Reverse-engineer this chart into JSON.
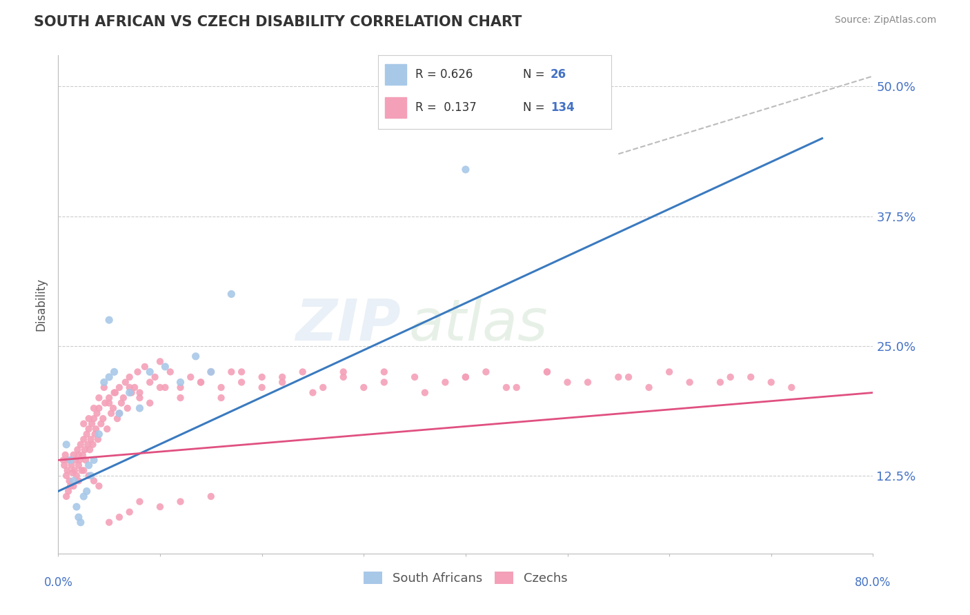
{
  "title": "SOUTH AFRICAN VS CZECH DISABILITY CORRELATION CHART",
  "source": "Source: ZipAtlas.com",
  "ylabel": "Disability",
  "xlim": [
    0.0,
    80.0
  ],
  "ylim": [
    5.0,
    53.0
  ],
  "yticks": [
    12.5,
    25.0,
    37.5,
    50.0
  ],
  "ytick_labels": [
    "12.5%",
    "25.0%",
    "37.5%",
    "50.0%"
  ],
  "background_color": "#ffffff",
  "blue_color": "#a8c8e8",
  "pink_color": "#f4a0b8",
  "blue_line_color": "#3a7abf",
  "pink_line_color": "#e05080",
  "dash_line_color": "#bbbbbb",
  "grid_color": "#cccccc",
  "title_color": "#333333",
  "source_color": "#888888",
  "tick_label_color": "#4472c4",
  "ylabel_color": "#555555",
  "legend_text_color": "#333333",
  "legend_N_color": "#4472c4",
  "sa_x": [
    0.8,
    1.2,
    1.5,
    1.8,
    2.0,
    2.2,
    2.5,
    2.8,
    3.0,
    3.2,
    3.5,
    4.0,
    4.5,
    5.0,
    5.5,
    6.0,
    7.0,
    8.0,
    9.0,
    10.5,
    12.0,
    13.5,
    15.0,
    17.0,
    40.0,
    5.0
  ],
  "sa_y": [
    15.5,
    14.0,
    12.0,
    9.5,
    8.5,
    8.0,
    10.5,
    11.0,
    13.5,
    12.5,
    14.0,
    16.5,
    21.5,
    22.0,
    22.5,
    18.5,
    20.5,
    19.0,
    22.5,
    23.0,
    21.5,
    24.0,
    22.5,
    30.0,
    42.0,
    27.5
  ],
  "cz_x": [
    0.5,
    0.6,
    0.7,
    0.8,
    0.9,
    1.0,
    1.1,
    1.2,
    1.3,
    1.4,
    1.5,
    1.6,
    1.7,
    1.8,
    1.9,
    2.0,
    2.1,
    2.2,
    2.3,
    2.4,
    2.5,
    2.6,
    2.7,
    2.8,
    2.9,
    3.0,
    3.1,
    3.2,
    3.3,
    3.4,
    3.5,
    3.6,
    3.7,
    3.8,
    3.9,
    4.0,
    4.2,
    4.4,
    4.6,
    4.8,
    5.0,
    5.2,
    5.4,
    5.6,
    5.8,
    6.0,
    6.2,
    6.4,
    6.6,
    6.8,
    7.0,
    7.2,
    7.5,
    7.8,
    8.0,
    8.5,
    9.0,
    9.5,
    10.0,
    10.5,
    11.0,
    12.0,
    13.0,
    14.0,
    15.0,
    16.0,
    17.0,
    18.0,
    20.0,
    22.0,
    24.0,
    26.0,
    28.0,
    30.0,
    32.0,
    35.0,
    38.0,
    40.0,
    42.0,
    45.0,
    48.0,
    50.0,
    55.0,
    58.0,
    60.0,
    65.0,
    68.0,
    70.0,
    2.0,
    2.5,
    3.0,
    3.5,
    4.0,
    4.5,
    5.0,
    5.5,
    6.0,
    7.0,
    8.0,
    9.0,
    10.0,
    12.0,
    14.0,
    16.0,
    18.0,
    20.0,
    22.0,
    25.0,
    28.0,
    32.0,
    36.0,
    40.0,
    44.0,
    48.0,
    52.0,
    56.0,
    62.0,
    66.0,
    72.0,
    0.8,
    1.0,
    1.5,
    2.0,
    2.5,
    3.0,
    3.5,
    4.0,
    5.0,
    6.0,
    7.0,
    8.0,
    10.0,
    12.0,
    15.0
  ],
  "cz_y": [
    14.0,
    13.5,
    14.5,
    12.5,
    13.0,
    14.0,
    12.0,
    11.5,
    13.5,
    12.8,
    14.5,
    13.0,
    14.0,
    12.5,
    15.0,
    13.5,
    14.0,
    15.5,
    13.0,
    14.5,
    16.0,
    15.0,
    14.0,
    16.5,
    15.5,
    17.0,
    15.0,
    16.0,
    17.5,
    15.5,
    18.0,
    16.5,
    17.0,
    18.5,
    16.0,
    19.0,
    17.5,
    18.0,
    19.5,
    17.0,
    20.0,
    18.5,
    19.0,
    20.5,
    18.0,
    21.0,
    19.5,
    20.0,
    21.5,
    19.0,
    22.0,
    20.5,
    21.0,
    22.5,
    20.0,
    23.0,
    21.5,
    22.0,
    23.5,
    21.0,
    22.5,
    21.0,
    22.0,
    21.5,
    22.5,
    21.0,
    22.5,
    21.5,
    22.0,
    21.5,
    22.5,
    21.0,
    22.5,
    21.0,
    22.5,
    22.0,
    21.5,
    22.0,
    22.5,
    21.0,
    22.5,
    21.5,
    22.0,
    21.0,
    22.5,
    21.5,
    22.0,
    21.5,
    14.5,
    17.5,
    18.0,
    19.0,
    20.0,
    21.0,
    19.5,
    20.5,
    18.5,
    21.0,
    20.5,
    19.5,
    21.0,
    20.0,
    21.5,
    20.0,
    22.5,
    21.0,
    22.0,
    20.5,
    22.0,
    21.5,
    20.5,
    22.0,
    21.0,
    22.5,
    21.5,
    22.0,
    21.5,
    22.0,
    21.0,
    10.5,
    11.0,
    11.5,
    12.0,
    13.0,
    12.5,
    12.0,
    11.5,
    8.0,
    8.5,
    9.0,
    10.0,
    9.5,
    10.0,
    10.5
  ],
  "sa_line_x0": 0.0,
  "sa_line_y0": 11.0,
  "sa_line_x1": 75.0,
  "sa_line_y1": 45.0,
  "cz_line_x0": 0.0,
  "cz_line_y0": 14.0,
  "cz_line_x1": 80.0,
  "cz_line_y1": 20.5,
  "dash_x0": 55.0,
  "dash_y0": 43.5,
  "dash_x1": 80.0,
  "dash_y1": 51.0
}
